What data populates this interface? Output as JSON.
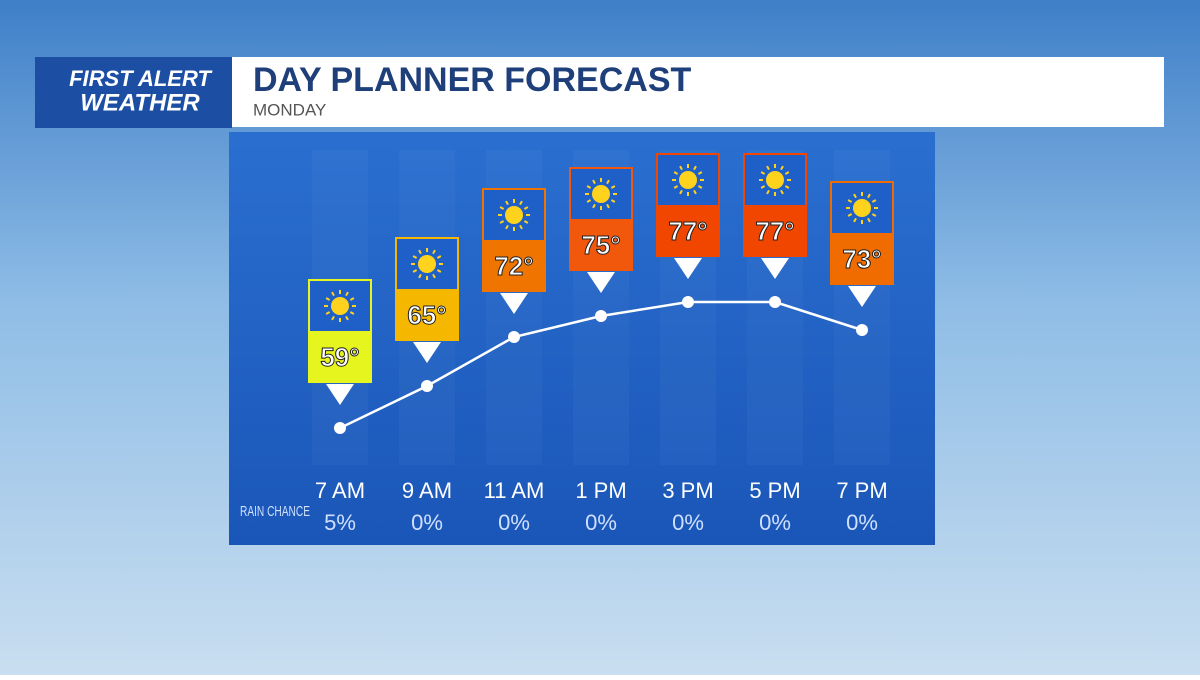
{
  "header": {
    "logo_top": "FIRST ALERT",
    "logo_bottom": "WEATHER"
  },
  "chart_data": {
    "type": "line",
    "title": "DAY PLANNER FORECAST",
    "subtitle": "MONDAY",
    "categories": [
      "7 AM",
      "9 AM",
      "11 AM",
      "1 PM",
      "3 PM",
      "5 PM",
      "7 PM"
    ],
    "series": [
      {
        "name": "Temperature",
        "color": "#ffffff",
        "values": [
          59,
          65,
          72,
          75,
          77,
          77,
          73
        ],
        "value_labels": [
          "59°",
          "65°",
          "72°",
          "75°",
          "77°",
          "77°",
          "73°"
        ],
        "marker_colors": [
          "#e6f51e",
          "#f5b700",
          "#f07400",
          "#f2580c",
          "#f04600",
          "#f04600",
          "#f06c00"
        ]
      }
    ],
    "ylim": [
      55,
      80
    ],
    "rain_chance": {
      "label": "RAIN CHANCE",
      "values": [
        5,
        0,
        0,
        0,
        0,
        0,
        0
      ],
      "value_labels": [
        "5%",
        "0%",
        "0%",
        "0%",
        "0%",
        "0%",
        "0%"
      ]
    }
  }
}
